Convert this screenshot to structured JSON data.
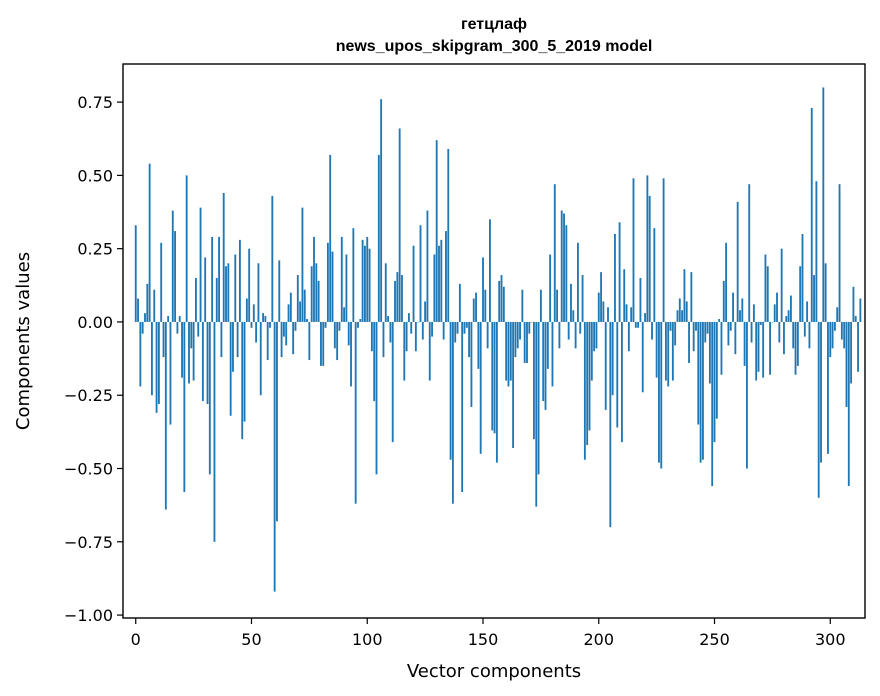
{
  "chart_data": {
    "type": "bar",
    "title": "гетцлаф",
    "subtitle": "news_upos_skipgram_300_5_2019 model",
    "xlabel": "Vector components",
    "ylabel": "Components values",
    "xlim": [
      -5.5,
      315
    ],
    "ylim": [
      -1.01,
      0.88
    ],
    "xticks": [
      0,
      50,
      100,
      150,
      200,
      250,
      300
    ],
    "xtick_labels": [
      "0",
      "50",
      "100",
      "150",
      "200",
      "250",
      "300"
    ],
    "yticks": [
      -1.0,
      -0.75,
      -0.5,
      -0.25,
      0.0,
      0.25,
      0.5,
      0.75
    ],
    "ytick_labels": [
      "−1.00",
      "−0.75",
      "−0.50",
      "−0.25",
      "0.00",
      "0.25",
      "0.50",
      "0.75"
    ],
    "bar_color": "#1f77b4",
    "values": [
      0.33,
      0.08,
      -0.22,
      -0.04,
      0.03,
      0.13,
      0.54,
      -0.25,
      0.11,
      -0.31,
      -0.28,
      0.27,
      -0.12,
      -0.64,
      0.02,
      -0.35,
      0.38,
      0.31,
      -0.04,
      0.02,
      -0.19,
      -0.58,
      0.5,
      -0.21,
      -0.09,
      -0.2,
      0.15,
      -0.05,
      0.39,
      -0.27,
      0.22,
      -0.28,
      -0.52,
      0.29,
      -0.75,
      0.15,
      0.29,
      -0.12,
      0.44,
      0.19,
      0.2,
      -0.32,
      -0.17,
      0.23,
      -0.12,
      0.28,
      -0.4,
      -0.34,
      0.08,
      0.25,
      -0.02,
      0.06,
      -0.07,
      0.2,
      -0.25,
      0.03,
      0.02,
      -0.13,
      -0.02,
      0.43,
      -0.92,
      -0.68,
      0.21,
      -0.12,
      -0.05,
      -0.08,
      0.06,
      0.1,
      -0.11,
      -0.03,
      0.16,
      0.07,
      0.39,
      0.11,
      0.01,
      -0.13,
      0.19,
      0.29,
      0.2,
      0.14,
      -0.15,
      -0.15,
      -0.02,
      0.27,
      0.57,
      0.24,
      -0.09,
      -0.13,
      -0.03,
      0.29,
      0.05,
      0.23,
      -0.08,
      -0.22,
      0.32,
      -0.62,
      -0.02,
      0.01,
      0.28,
      0.26,
      0.29,
      0.25,
      -0.1,
      -0.27,
      -0.52,
      0.57,
      0.76,
      -0.12,
      0.2,
      0.02,
      -0.07,
      -0.41,
      0.14,
      0.17,
      0.66,
      0.16,
      -0.2,
      -0.1,
      0.03,
      -0.04,
      0.26,
      -0.1,
      0.0,
      0.33,
      -0.06,
      0.07,
      0.38,
      -0.2,
      -0.05,
      0.23,
      0.62,
      0.26,
      0.28,
      -0.06,
      0.31,
      0.59,
      -0.47,
      -0.62,
      -0.07,
      -0.04,
      0.13,
      -0.58,
      -0.04,
      -0.02,
      -0.12,
      -0.29,
      0.08,
      0.1,
      -0.16,
      -0.45,
      0.22,
      0.11,
      -0.09,
      0.35,
      -0.37,
      -0.38,
      -0.48,
      0.14,
      0.16,
      0.12,
      -0.2,
      -0.22,
      -0.2,
      -0.43,
      -0.12,
      -0.09,
      -0.06,
      0.11,
      -0.14,
      -0.14,
      -0.04,
      0.0,
      -0.4,
      -0.63,
      -0.52,
      0.11,
      -0.27,
      -0.3,
      -0.16,
      0.23,
      -0.22,
      0.47,
      0.11,
      -0.09,
      0.38,
      0.37,
      0.33,
      -0.06,
      0.13,
      0.04,
      -0.09,
      0.27,
      -0.04,
      0.16,
      -0.47,
      -0.42,
      -0.37,
      -0.2,
      -0.1,
      -0.09,
      0.1,
      0.17,
      0.07,
      -0.3,
      0.05,
      -0.7,
      -0.25,
      0.3,
      -0.36,
      0.34,
      -0.41,
      0.18,
      0.06,
      -0.1,
      0.05,
      0.49,
      -0.02,
      -0.02,
      0.15,
      -0.24,
      0.03,
      0.5,
      0.43,
      -0.06,
      0.32,
      -0.19,
      -0.48,
      -0.5,
      0.49,
      -0.2,
      -0.22,
      -0.03,
      -0.2,
      -0.08,
      0.04,
      0.08,
      0.04,
      0.18,
      0.07,
      -0.14,
      0.17,
      -0.1,
      -0.03,
      -0.35,
      -0.48,
      -0.47,
      -0.07,
      -0.04,
      -0.21,
      -0.56,
      -0.41,
      -0.33,
      0.01,
      -0.18,
      0.14,
      0.27,
      -0.08,
      -0.03,
      0.1,
      -0.11,
      0.41,
      0.04,
      0.08,
      -0.15,
      -0.5,
      0.47,
      -0.07,
      0.06,
      -0.2,
      -0.17,
      -0.01,
      -0.19,
      0.23,
      0.19,
      -0.18,
      0.0,
      0.06,
      0.1,
      -0.07,
      0.25,
      -0.11,
      0.02,
      0.04,
      0.09,
      -0.09,
      -0.18,
      -0.15,
      0.19,
      0.3,
      -0.05,
      0.07,
      -0.09,
      0.73,
      0.16,
      0.48,
      -0.6,
      -0.48,
      0.8,
      0.2,
      -0.45,
      -0.12,
      -0.09,
      -0.03,
      0.05,
      0.47,
      -0.06,
      -0.09,
      -0.29,
      -0.56,
      -0.21,
      0.12,
      0.02,
      -0.17,
      0.08
    ]
  }
}
